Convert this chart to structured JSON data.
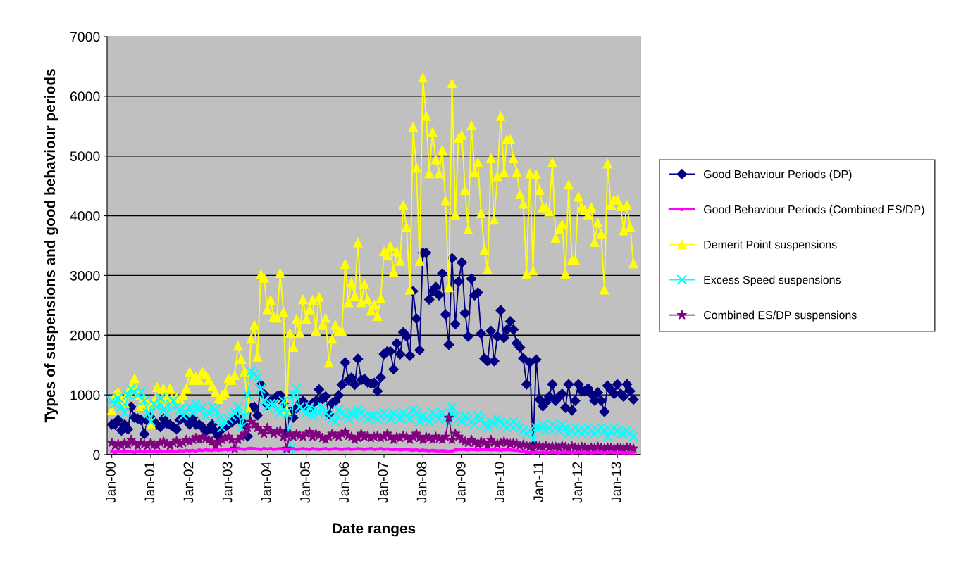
{
  "chart_data": {
    "type": "line",
    "xlabel": "Date ranges",
    "ylabel": "Types of suspensions and good behaviour periods",
    "x": [
      "2000-01",
      "2000-02",
      "2000-03",
      "2000-04",
      "2000-05",
      "2000-06",
      "2000-07",
      "2000-08",
      "2000-09",
      "2000-10",
      "2000-11",
      "2000-12",
      "2001-01",
      "2001-02",
      "2001-03",
      "2001-04",
      "2001-05",
      "2001-06",
      "2001-07",
      "2001-08",
      "2001-09",
      "2001-10",
      "2001-11",
      "2001-12",
      "2002-01",
      "2002-02",
      "2002-03",
      "2002-04",
      "2002-05",
      "2002-06",
      "2002-07",
      "2002-08",
      "2002-09",
      "2002-10",
      "2002-11",
      "2002-12",
      "2003-01",
      "2003-02",
      "2003-03",
      "2003-04",
      "2003-05",
      "2003-06",
      "2003-07",
      "2003-08",
      "2003-09",
      "2003-10",
      "2003-11",
      "2003-12",
      "2004-01",
      "2004-02",
      "2004-03",
      "2004-04",
      "2004-05",
      "2004-06",
      "2004-07",
      "2004-08",
      "2004-09",
      "2004-10",
      "2004-11",
      "2004-12",
      "2005-01",
      "2005-02",
      "2005-03",
      "2005-04",
      "2005-05",
      "2005-06",
      "2005-07",
      "2005-08",
      "2005-09",
      "2005-10",
      "2005-11",
      "2005-12",
      "2006-01",
      "2006-02",
      "2006-03",
      "2006-04",
      "2006-05",
      "2006-06",
      "2006-07",
      "2006-08",
      "2006-09",
      "2006-10",
      "2006-11",
      "2006-12",
      "2007-01",
      "2007-02",
      "2007-03",
      "2007-04",
      "2007-05",
      "2007-06",
      "2007-07",
      "2007-08",
      "2007-09",
      "2007-10",
      "2007-11",
      "2007-12",
      "2008-01",
      "2008-02",
      "2008-03",
      "2008-04",
      "2008-05",
      "2008-06",
      "2008-07",
      "2008-08",
      "2008-09",
      "2008-10",
      "2008-11",
      "2008-12",
      "2009-01",
      "2009-02",
      "2009-03",
      "2009-04",
      "2009-05",
      "2009-06",
      "2009-07",
      "2009-08",
      "2009-09",
      "2009-10",
      "2009-11",
      "2009-12",
      "2010-01",
      "2010-02",
      "2010-03",
      "2010-04",
      "2010-05",
      "2010-06",
      "2010-07",
      "2010-08",
      "2010-09",
      "2010-10",
      "2010-11",
      "2010-12",
      "2011-01",
      "2011-02",
      "2011-03",
      "2011-04",
      "2011-05",
      "2011-06",
      "2011-07",
      "2011-08",
      "2011-09",
      "2011-10",
      "2011-11",
      "2011-12",
      "2012-01",
      "2012-02",
      "2012-03",
      "2012-04",
      "2012-05",
      "2012-06",
      "2012-07",
      "2012-08",
      "2012-09",
      "2012-10",
      "2012-11",
      "2012-12",
      "2013-01",
      "2013-02",
      "2013-03",
      "2013-04",
      "2013-05",
      "2013-06"
    ],
    "series": [
      {
        "name": "Good Behaviour Periods (DP)",
        "color": "#000080",
        "marker": "diamond",
        "values": [
          503,
          503,
          581,
          404,
          503,
          424,
          798,
          621,
          601,
          581,
          345,
          562,
          621,
          542,
          503,
          463,
          601,
          522,
          503,
          463,
          424,
          581,
          621,
          581,
          503,
          621,
          503,
          503,
          463,
          385,
          424,
          503,
          385,
          300,
          424,
          463,
          503,
          542,
          581,
          621,
          562,
          463,
          306,
          778,
          798,
          660,
          1170,
          1013,
          837,
          896,
          915,
          974,
          994,
          857,
          365,
          719,
          621,
          778,
          857,
          896,
          798,
          778,
          857,
          896,
          1091,
          935,
          974,
          680,
          857,
          896,
          994,
          1170,
          1544,
          1249,
          1288,
          1170,
          1603,
          1249,
          1268,
          1209,
          1190,
          1200,
          1063,
          1292,
          1682,
          1728,
          1728,
          1430,
          1865,
          1682,
          2048,
          1980,
          1658,
          2736,
          2278,
          1750,
          3378,
          3378,
          2598,
          2736,
          2805,
          2668,
          3034,
          2346,
          1842,
          3287,
          2186,
          2897,
          3217,
          2370,
          1980,
          2943,
          2668,
          2713,
          2026,
          1613,
          1567,
          2072,
          1567,
          1980,
          2416,
          1956,
          2094,
          2232,
          2094,
          1865,
          1796,
          1613,
          1177,
          1544,
          145,
          1590,
          925,
          811,
          879,
          971,
          1177,
          902,
          971,
          1017,
          787,
          1177,
          741,
          902,
          1177,
          1063,
          1063,
          1109,
          1017,
          902,
          1040,
          902,
          719,
          1154,
          1086,
          1017,
          1177,
          1017,
          971,
          1177,
          1063,
          925
        ]
      },
      {
        "name": "Good Behaviour Periods (Combined ES/DP)",
        "color": "#ff00ff",
        "marker": "square",
        "values": [
          50,
          40,
          60,
          50,
          45,
          55,
          50,
          40,
          60,
          50,
          45,
          50,
          55,
          50,
          45,
          60,
          50,
          55,
          60,
          50,
          55,
          65,
          60,
          70,
          65,
          70,
          60,
          75,
          70,
          80,
          75,
          70,
          80,
          75,
          80,
          85,
          80,
          90,
          90,
          100,
          95,
          90,
          100,
          105,
          100,
          95,
          90,
          100,
          95,
          100,
          90,
          95,
          100,
          90,
          80,
          95,
          100,
          90,
          95,
          100,
          95,
          90,
          100,
          95,
          90,
          95,
          100,
          90,
          95,
          100,
          95,
          90,
          95,
          100,
          90,
          95,
          100,
          95,
          90,
          95,
          100,
          90,
          95,
          100,
          90,
          95,
          90,
          85,
          90,
          80,
          85,
          90,
          80,
          75,
          80,
          70,
          75,
          70,
          65,
          70,
          65,
          60,
          65,
          60,
          55,
          60,
          80,
          85,
          90,
          85,
          80,
          90,
          85,
          80,
          85,
          90,
          85,
          80,
          85,
          80,
          75,
          80,
          85,
          80,
          75,
          70,
          60,
          50,
          40,
          35,
          30,
          40,
          35,
          40,
          30,
          35,
          40,
          35,
          30,
          35,
          40,
          35,
          30,
          35,
          40,
          35,
          30,
          35,
          30,
          35,
          40,
          35,
          30,
          35,
          40,
          35,
          30,
          35,
          30,
          35,
          30,
          30
        ]
      },
      {
        "name": "Demerit Point suspensions",
        "color": "#ffff00",
        "marker": "triangle",
        "values": [
          740,
          1000,
          1050,
          900,
          860,
          1040,
          1150,
          1280,
          1000,
          810,
          930,
          850,
          520,
          900,
          1130,
          900,
          1110,
          950,
          1110,
          900,
          950,
          930,
          1000,
          1110,
          1390,
          1250,
          1300,
          1250,
          1390,
          1340,
          1250,
          1150,
          1050,
          930,
          1000,
          1040,
          1280,
          1250,
          1330,
          1820,
          1600,
          1390,
          780,
          1940,
          2170,
          1640,
          3020,
          2960,
          2430,
          2590,
          2310,
          2290,
          3040,
          2390,
          740,
          2040,
          1800,
          2270,
          2040,
          2600,
          2270,
          2430,
          2590,
          2070,
          2640,
          2170,
          2290,
          1540,
          1940,
          2170,
          2070,
          2070,
          3190,
          2550,
          2880,
          2660,
          3550,
          2550,
          2860,
          2600,
          2410,
          2510,
          2320,
          2620,
          3400,
          3330,
          3490,
          3060,
          3400,
          3240,
          4180,
          3810,
          2760,
          5490,
          4800,
          3240,
          6310,
          5670,
          4710,
          5400,
          4940,
          4710,
          5100,
          4250,
          2800,
          6220,
          4020,
          5300,
          5350,
          4430,
          3770,
          5510,
          4730,
          4890,
          4040,
          3430,
          3100,
          4960,
          3930,
          4660,
          5670,
          4730,
          5280,
          5280,
          4960,
          4730,
          4360,
          4200,
          3030,
          4710,
          3080,
          4690,
          4430,
          4140,
          4140,
          4070,
          4890,
          3630,
          3770,
          3860,
          3030,
          4520,
          3260,
          3260,
          4320,
          4140,
          4090,
          4020,
          4140,
          3560,
          3880,
          3700,
          2760,
          4870,
          4180,
          4270,
          4270,
          4160,
          3750,
          4180,
          3810,
          3200
        ]
      },
      {
        "name": "Excess Speed suspensions",
        "color": "#00ffff",
        "marker": "cross",
        "values": [
          900,
          850,
          950,
          800,
          700,
          1000,
          1100,
          1050,
          1000,
          1050,
          900,
          700,
          550,
          850,
          800,
          950,
          750,
          700,
          850,
          900,
          800,
          750,
          650,
          700,
          800,
          700,
          850,
          750,
          800,
          650,
          700,
          800,
          750,
          600,
          450,
          550,
          600,
          650,
          700,
          800,
          450,
          650,
          1000,
          1400,
          1350,
          1300,
          1100,
          900,
          800,
          850,
          850,
          750,
          700,
          900,
          700,
          100,
          1000,
          1100,
          800,
          750,
          700,
          800,
          650,
          750,
          700,
          800,
          700,
          650,
          600,
          550,
          750,
          700,
          650,
          600,
          700,
          650,
          750,
          700,
          650,
          600,
          650,
          650,
          600,
          650,
          700,
          650,
          600,
          700,
          650,
          600,
          700,
          650,
          600,
          750,
          700,
          550,
          650,
          600,
          550,
          700,
          650,
          600,
          700,
          600,
          550,
          800,
          650,
          600,
          550,
          650,
          600,
          550,
          500,
          650,
          600,
          500,
          450,
          550,
          500,
          600,
          550,
          500,
          450,
          500,
          550,
          500,
          450,
          400,
          350,
          400,
          250,
          450,
          450,
          500,
          400,
          450,
          500,
          450,
          400,
          500,
          450,
          350,
          400,
          450,
          400,
          350,
          400,
          450,
          400,
          350,
          400,
          450,
          400,
          300,
          400,
          450,
          400,
          350,
          350,
          400,
          350,
          300
        ]
      },
      {
        "name": "Combined ES/DP suspensions",
        "color": "#800080",
        "marker": "star",
        "values": [
          200,
          150,
          180,
          150,
          200,
          170,
          250,
          200,
          150,
          200,
          180,
          150,
          200,
          170,
          150,
          200,
          220,
          180,
          150,
          200,
          230,
          180,
          200,
          250,
          220,
          250,
          280,
          250,
          300,
          270,
          250,
          220,
          150,
          200,
          250,
          280,
          300,
          250,
          100,
          250,
          300,
          350,
          450,
          550,
          500,
          450,
          400,
          350,
          450,
          400,
          350,
          380,
          400,
          300,
          100,
          350,
          300,
          350,
          320,
          300,
          350,
          380,
          300,
          350,
          320,
          280,
          250,
          300,
          350,
          320,
          300,
          350,
          380,
          320,
          300,
          250,
          280,
          350,
          300,
          320,
          280,
          300,
          320,
          280,
          300,
          350,
          300,
          250,
          300,
          280,
          320,
          300,
          250,
          300,
          350,
          280,
          250,
          300,
          280,
          250,
          300,
          270,
          250,
          300,
          620,
          250,
          350,
          300,
          250,
          220,
          200,
          250,
          200,
          180,
          220,
          200,
          150,
          250,
          200,
          180,
          200,
          220,
          200,
          180,
          200,
          180,
          150,
          170,
          150,
          130,
          100,
          150,
          140,
          130,
          150,
          120,
          140,
          130,
          120,
          150,
          130,
          110,
          140,
          120,
          110,
          130,
          120,
          100,
          120,
          110,
          130,
          110,
          100,
          120,
          110,
          100,
          120,
          110,
          100,
          120,
          110,
          100
        ]
      }
    ],
    "xlim": [
      "1999-11-18",
      "2013-08-06"
    ],
    "xticks": [
      {
        "value": "2000-01",
        "label": "Jan-00"
      },
      {
        "value": "2001-01",
        "label": "Jan-01"
      },
      {
        "value": "2002-01",
        "label": "Jan-02"
      },
      {
        "value": "2003-01",
        "label": "Jan-03"
      },
      {
        "value": "2004-01",
        "label": "Jan-04"
      },
      {
        "value": "2005-01",
        "label": "Jan-05"
      },
      {
        "value": "2006-01",
        "label": "Jan-06"
      },
      {
        "value": "2007-01",
        "label": "Jan-07"
      },
      {
        "value": "2008-01",
        "label": "Jan-08"
      },
      {
        "value": "2009-01",
        "label": "Jan-09"
      },
      {
        "value": "2010-01",
        "label": "Jan-10"
      },
      {
        "value": "2011-01",
        "label": "Jan-11"
      },
      {
        "value": "2012-01",
        "label": "Jan-12"
      },
      {
        "value": "2013-01",
        "label": "Jan-13"
      }
    ],
    "ylim": [
      0,
      7000
    ],
    "yticks": [
      0,
      1000,
      2000,
      3000,
      4000,
      5000,
      6000,
      7000
    ],
    "grid": "y",
    "legend": "right",
    "line_style": "solid"
  }
}
